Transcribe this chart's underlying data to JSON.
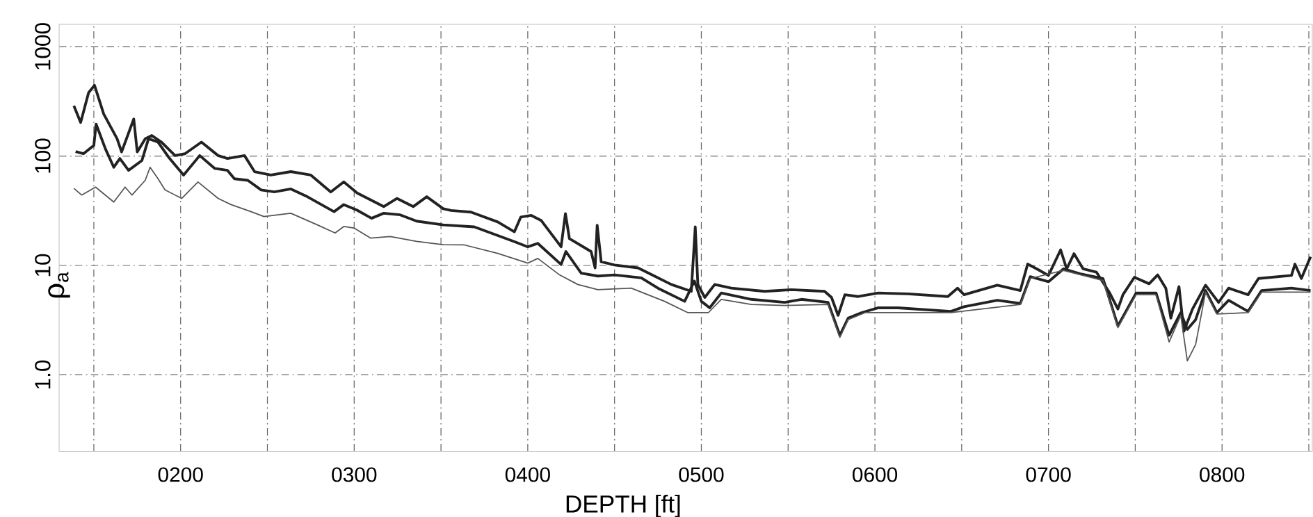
{
  "chart_data": {
    "type": "line",
    "xlabel": "DEPTH [ft]",
    "ylabel": "ρ$_{a}$",
    "xlim": [
      130,
      852
    ],
    "ylim": [
      0.2,
      1600
    ],
    "log": "y",
    "grid": true,
    "line_style": "solid",
    "marker": "none",
    "xticks": [
      {
        "value": 150,
        "label": null
      },
      {
        "value": 200,
        "label": "0200"
      },
      {
        "value": 250,
        "label": null
      },
      {
        "value": 300,
        "label": "0300"
      },
      {
        "value": 350,
        "label": null
      },
      {
        "value": 400,
        "label": "0400"
      },
      {
        "value": 450,
        "label": null
      },
      {
        "value": 500,
        "label": "0500"
      },
      {
        "value": 550,
        "label": null
      },
      {
        "value": 600,
        "label": "0600"
      },
      {
        "value": 650,
        "label": null
      },
      {
        "value": 700,
        "label": "0700"
      },
      {
        "value": 750,
        "label": null
      },
      {
        "value": 800,
        "label": "0800"
      },
      {
        "value": 850,
        "label": null
      }
    ],
    "yticks": [
      {
        "value": 1,
        "label": "1.0"
      },
      10,
      100,
      1000
    ],
    "series": [
      {
        "color": "#222222",
        "x": [
          138.5,
          142.4,
          147,
          150.4,
          155.7,
          163.4,
          166,
          173,
          175,
          179.6,
          183.4,
          189,
          196.8,
          202.5,
          212,
          221.6,
          227,
          236.8,
          242.6,
          252,
          263.5,
          275,
          286.5,
          294,
          301.7,
          317,
          324.6,
          334,
          341.8,
          351.3,
          355.8,
          367.3,
          382.7,
          392.3,
          396,
          402,
          407.7,
          419.2,
          421.7,
          424,
          436.5,
          438.8,
          440,
          442.3,
          450,
          463.5,
          473,
          482.7,
          494.2,
          496.5,
          498,
          502,
          507.7,
          517.3,
          536.5,
          552,
          571,
          575,
          578.8,
          582.7,
          590.4,
          602,
          619,
          642,
          647.6,
          651.4,
          670.5,
          683.8,
          688,
          693.3,
          700,
          707,
          710.5,
          714.7,
          720,
          727.6,
          735,
          740,
          742.9,
          749.5,
          758,
          762.9,
          767.6,
          770.5,
          775.2,
          778,
          783,
          790.5,
          798,
          803.8,
          815,
          821,
          840,
          842,
          845.7,
          851
        ],
        "values": [
          288,
          203,
          380,
          443,
          242,
          144,
          109,
          218,
          109,
          144,
          154,
          134,
          101,
          105,
          134,
          101,
          95,
          101,
          72,
          67,
          72,
          67,
          47,
          58,
          46,
          34.5,
          41,
          34.5,
          42.5,
          33,
          31.8,
          30.7,
          25,
          20.3,
          27.7,
          28.7,
          25.8,
          14.8,
          29.8,
          17.6,
          13.4,
          9.5,
          23.3,
          10.8,
          10.1,
          9.5,
          8,
          6.7,
          5.8,
          22.5,
          6.7,
          5.1,
          6.7,
          6.2,
          5.8,
          6.0,
          5.8,
          5.1,
          3.5,
          5.4,
          5.2,
          5.6,
          5.5,
          5.2,
          6.2,
          5.4,
          6.6,
          5.9,
          10.3,
          9.3,
          8.1,
          13.9,
          9.3,
          12.8,
          9.3,
          8.7,
          5.7,
          4.0,
          5.4,
          7.8,
          6.8,
          8.2,
          6.2,
          3.3,
          6.4,
          2.5,
          4.0,
          6.6,
          4.6,
          6.2,
          5.4,
          7.6,
          8.1,
          10.3,
          7.6,
          12
        ]
      },
      {
        "color": "#222222",
        "x": [
          139.5,
          144,
          150,
          151.3,
          156.7,
          161.5,
          165,
          170,
          177.7,
          181.5,
          187,
          193,
          201.7,
          211,
          219.7,
          227,
          231,
          238.7,
          246.4,
          254,
          263.5,
          273,
          288.4,
          294,
          301.7,
          310,
          317,
          326.5,
          336,
          351.3,
          369.2,
          392.3,
          400,
          405.8,
          419.2,
          422,
          430.8,
          440.4,
          450,
          465.4,
          475,
          490.4,
          496,
          500,
          504.8,
          511.5,
          528.8,
          548,
          557.7,
          573,
          579.8,
          584.6,
          592.3,
          602,
          613.3,
          643.8,
          651.4,
          670.5,
          683.8,
          689.5,
          700,
          708.6,
          718,
          731.4,
          740,
          750.5,
          762,
          769.5,
          776.2,
          780,
          784.8,
          790.5,
          797,
          803.8,
          815,
          822.8,
          840,
          851
        ],
        "values": [
          110,
          105,
          125,
          196,
          116,
          79,
          95,
          74,
          91,
          144,
          134,
          98,
          67,
          101,
          77,
          74,
          62,
          60,
          49,
          47,
          50,
          42.5,
          31,
          36,
          32,
          27,
          30,
          29,
          25.4,
          23.5,
          22.5,
          16.5,
          14.8,
          15.9,
          10.2,
          13.4,
          8.5,
          8,
          8.2,
          7.7,
          6.2,
          4.7,
          7.2,
          4.7,
          4.1,
          5.6,
          4.9,
          4.6,
          4.9,
          4.6,
          2.3,
          3.3,
          3.7,
          4.1,
          4.1,
          3.8,
          4.2,
          4.8,
          4.5,
          7.9,
          7.1,
          9.3,
          8.4,
          7.6,
          2.8,
          5.6,
          5.6,
          2.3,
          3.7,
          2.6,
          3.2,
          5.9,
          3.7,
          4.8,
          3.8,
          5.9,
          6.2,
          5.9
        ]
      },
      {
        "color": "#555555",
        "x": [
          138.5,
          143,
          151,
          161.5,
          168,
          172,
          179.6,
          182.4,
          187,
          191,
          200.6,
          210,
          221.6,
          229,
          240.6,
          248,
          263.5,
          278.8,
          289,
          294,
          299.8,
          309.4,
          320.8,
          336,
          351.3,
          363.5,
          382.7,
          400,
          405.8,
          418.3,
          428.8,
          440.4,
          459.6,
          478.8,
          492.3,
          504,
          511.5,
          528.8,
          548,
          573,
          579.8,
          584.6,
          594.3,
          643.8,
          683.8,
          689.5,
          708.6,
          731.4,
          740,
          750.5,
          762,
          769.5,
          776.2,
          780,
          784.8,
          790.5,
          797,
          815,
          822.8,
          851
        ],
        "values": [
          50.6,
          44,
          52,
          38,
          52,
          44,
          60,
          79,
          62,
          49,
          41,
          58,
          41,
          36,
          31,
          28,
          30,
          23.5,
          19.8,
          22.7,
          22,
          17.8,
          18.4,
          16.6,
          15.5,
          15.4,
          12.9,
          10.5,
          11.6,
          8.2,
          6.7,
          6.0,
          6.2,
          4.7,
          3.7,
          3.7,
          4.9,
          4.4,
          4.3,
          4.4,
          2.2,
          3.2,
          3.7,
          3.7,
          4.4,
          7.6,
          9.0,
          7.3,
          2.7,
          5.4,
          5.4,
          2.0,
          3.5,
          1.34,
          1.9,
          5.7,
          3.6,
          3.7,
          5.7,
          5.7
        ]
      }
    ]
  }
}
